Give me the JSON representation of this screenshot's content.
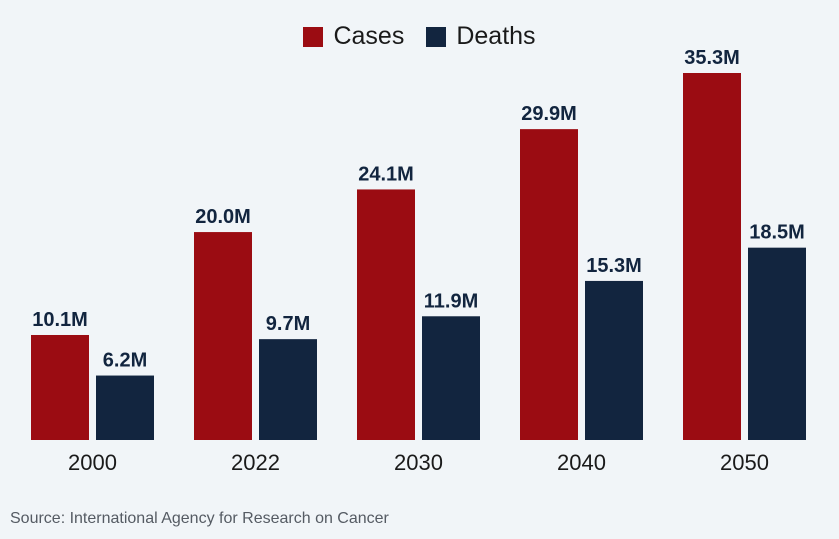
{
  "legend": {
    "cases_label": "Cases",
    "deaths_label": "Deaths"
  },
  "colors": {
    "cases": "#9b0c12",
    "deaths": "#12253f",
    "label_text": "#12253f",
    "tick_text": "#1a1a1a"
  },
  "source": "Source: International Agency for Research on Cancer",
  "chart_data": {
    "type": "bar",
    "categories": [
      "2000",
      "2022",
      "2030",
      "2040",
      "2050"
    ],
    "series": [
      {
        "name": "Cases",
        "values": [
          10.1,
          20.0,
          24.1,
          29.9,
          35.3
        ],
        "labels": [
          "10.1M",
          "20.0M",
          "24.1M",
          "29.9M",
          "35.3M"
        ]
      },
      {
        "name": "Deaths",
        "values": [
          6.2,
          9.7,
          11.9,
          15.3,
          18.5
        ],
        "labels": [
          "6.2M",
          "9.7M",
          "11.9M",
          "15.3M",
          "18.5M"
        ]
      }
    ],
    "ylim": [
      0,
      35.3
    ],
    "grid": false,
    "legend_position": "top-center"
  }
}
